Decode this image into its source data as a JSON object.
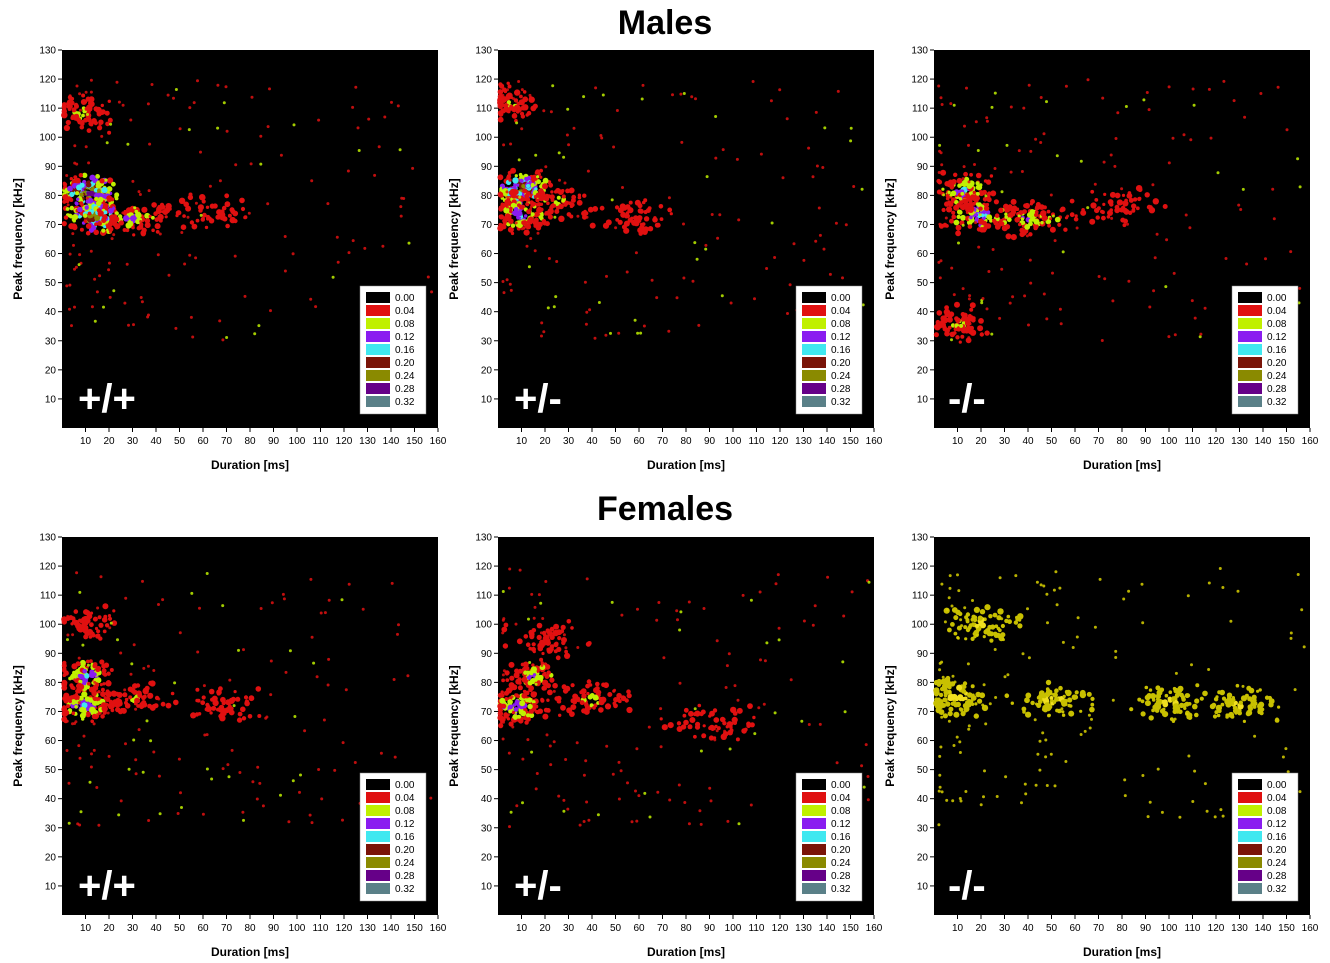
{
  "titles": {
    "males": "Males",
    "females": "Females"
  },
  "legend": {
    "values": [
      "0.00",
      "0.04",
      "0.08",
      "0.12",
      "0.16",
      "0.20",
      "0.24",
      "0.28",
      "0.32"
    ],
    "colors": [
      "#000000",
      "#e01010",
      "#c0f000",
      "#8a1cf0",
      "#40e8f0",
      "#7a1408",
      "#8a8a00",
      "#660088",
      "#5a8088"
    ]
  },
  "chart_data": [
    {
      "type": "heatmap",
      "group": "Males",
      "genotype": "+/+",
      "xlabel": "Duration [ms]",
      "ylabel": "Peak frequency [kHz]",
      "xlim": [
        0,
        160
      ],
      "ylim": [
        0,
        130
      ],
      "xticks": [
        10,
        20,
        30,
        40,
        50,
        60,
        70,
        80,
        90,
        100,
        110,
        120,
        130,
        140,
        150,
        160
      ],
      "yticks": [
        10,
        20,
        30,
        40,
        50,
        60,
        70,
        80,
        90,
        100,
        110,
        120,
        130
      ],
      "clusters": [
        {
          "x": 12,
          "y": 81,
          "density": 0.32
        },
        {
          "x": 14,
          "y": 73,
          "density": 0.28
        },
        {
          "x": 30,
          "y": 72,
          "density": 0.12
        },
        {
          "x": 60,
          "y": 74,
          "density": 0.04
        },
        {
          "x": 8,
          "y": 108,
          "density": 0.08
        }
      ],
      "value_range": [
        0.0,
        0.32
      ]
    },
    {
      "type": "heatmap",
      "group": "Males",
      "genotype": "+/-",
      "xlabel": "Duration [ms]",
      "ylabel": "Peak frequency [kHz]",
      "xlim": [
        0,
        160
      ],
      "ylim": [
        0,
        130
      ],
      "xticks": [
        10,
        20,
        30,
        40,
        50,
        60,
        70,
        80,
        90,
        100,
        110,
        120,
        130,
        140,
        150,
        160
      ],
      "yticks": [
        10,
        20,
        30,
        40,
        50,
        60,
        70,
        80,
        90,
        100,
        110,
        120,
        130
      ],
      "clusters": [
        {
          "x": 10,
          "y": 82,
          "density": 0.28
        },
        {
          "x": 10,
          "y": 73,
          "density": 0.16
        },
        {
          "x": 25,
          "y": 78,
          "density": 0.08
        },
        {
          "x": 5,
          "y": 112,
          "density": 0.08
        },
        {
          "x": 60,
          "y": 72,
          "density": 0.04
        }
      ],
      "value_range": [
        0.0,
        0.32
      ]
    },
    {
      "type": "heatmap",
      "group": "Males",
      "genotype": "-/-",
      "xlabel": "Duration [ms]",
      "ylabel": "Peak frequency [kHz]",
      "xlim": [
        0,
        160
      ],
      "ylim": [
        0,
        130
      ],
      "xticks": [
        10,
        20,
        30,
        40,
        50,
        60,
        70,
        80,
        90,
        100,
        110,
        120,
        130,
        140,
        150,
        160
      ],
      "yticks": [
        10,
        20,
        30,
        40,
        50,
        60,
        70,
        80,
        90,
        100,
        110,
        120,
        130
      ],
      "clusters": [
        {
          "x": 12,
          "y": 82,
          "density": 0.16
        },
        {
          "x": 20,
          "y": 73,
          "density": 0.16
        },
        {
          "x": 40,
          "y": 72,
          "density": 0.12
        },
        {
          "x": 10,
          "y": 36,
          "density": 0.08
        },
        {
          "x": 80,
          "y": 76,
          "density": 0.04
        }
      ],
      "value_range": [
        0.0,
        0.32
      ]
    },
    {
      "type": "heatmap",
      "group": "Females",
      "genotype": "+/+",
      "xlabel": "Duration [ms]",
      "ylabel": "Peak frequency [kHz]",
      "xlim": [
        0,
        160
      ],
      "ylim": [
        0,
        130
      ],
      "xticks": [
        10,
        20,
        30,
        40,
        50,
        60,
        70,
        80,
        90,
        100,
        110,
        120,
        130,
        140,
        150,
        160
      ],
      "yticks": [
        10,
        20,
        30,
        40,
        50,
        60,
        70,
        80,
        90,
        100,
        110,
        120,
        130
      ],
      "clusters": [
        {
          "x": 10,
          "y": 82,
          "density": 0.16
        },
        {
          "x": 10,
          "y": 72,
          "density": 0.16
        },
        {
          "x": 30,
          "y": 74,
          "density": 0.08
        },
        {
          "x": 70,
          "y": 72,
          "density": 0.04
        },
        {
          "x": 10,
          "y": 100,
          "density": 0.04
        }
      ],
      "value_range": [
        0.0,
        0.32
      ]
    },
    {
      "type": "heatmap",
      "group": "Females",
      "genotype": "+/-",
      "xlabel": "Duration [ms]",
      "ylabel": "Peak frequency [kHz]",
      "xlim": [
        0,
        160
      ],
      "ylim": [
        0,
        130
      ],
      "xticks": [
        10,
        20,
        30,
        40,
        50,
        60,
        70,
        80,
        90,
        100,
        110,
        120,
        130,
        140,
        150,
        160
      ],
      "yticks": [
        10,
        20,
        30,
        40,
        50,
        60,
        70,
        80,
        90,
        100,
        110,
        120,
        130
      ],
      "clusters": [
        {
          "x": 8,
          "y": 72,
          "density": 0.16
        },
        {
          "x": 15,
          "y": 82,
          "density": 0.12
        },
        {
          "x": 40,
          "y": 74,
          "density": 0.08
        },
        {
          "x": 90,
          "y": 66,
          "density": 0.04
        },
        {
          "x": 20,
          "y": 95,
          "density": 0.04
        }
      ],
      "value_range": [
        0.0,
        0.32
      ]
    },
    {
      "type": "heatmap",
      "group": "Females",
      "genotype": "-/-",
      "xlabel": "Duration [ms]",
      "ylabel": "Peak frequency [kHz]",
      "xlim": [
        0,
        160
      ],
      "ylim": [
        0,
        130
      ],
      "xticks": [
        10,
        20,
        30,
        40,
        50,
        60,
        70,
        80,
        90,
        100,
        110,
        120,
        130,
        140,
        150,
        160
      ],
      "yticks": [
        10,
        20,
        30,
        40,
        50,
        60,
        70,
        80,
        90,
        100,
        110,
        120,
        130
      ],
      "clusters": [
        {
          "x": 10,
          "y": 75,
          "density": 0.12
        },
        {
          "x": 50,
          "y": 74,
          "density": 0.08
        },
        {
          "x": 100,
          "y": 73,
          "density": 0.08
        },
        {
          "x": 20,
          "y": 100,
          "density": 0.08
        },
        {
          "x": 130,
          "y": 72,
          "density": 0.08
        }
      ],
      "value_range": [
        0.0,
        0.32
      ]
    }
  ]
}
